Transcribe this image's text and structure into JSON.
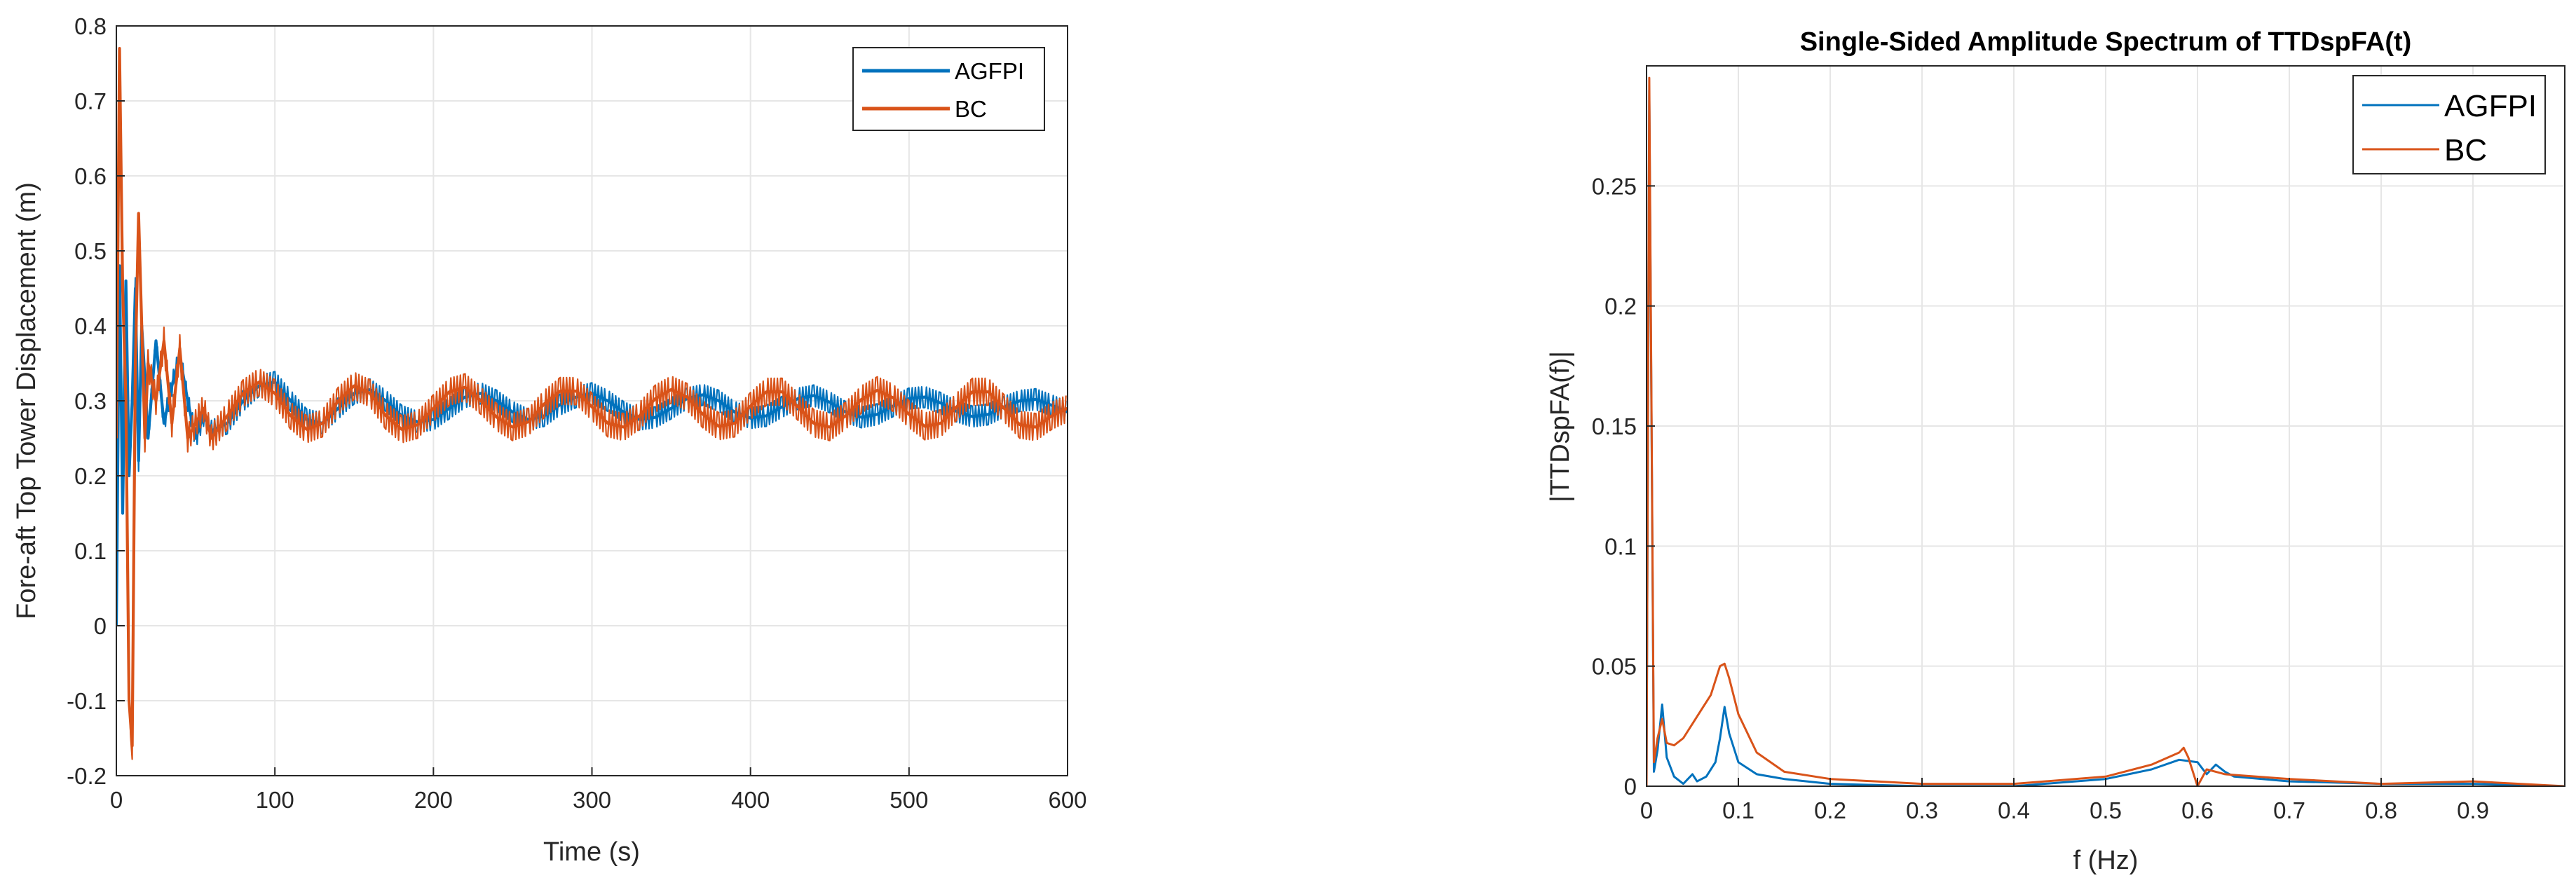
{
  "colors": {
    "agfpi": "#0072BD",
    "bc": "#D95319",
    "grid": "#e6e6e6",
    "axis": "#262626"
  },
  "chart_data": [
    {
      "type": "line",
      "title": "",
      "xlabel": "Time (s)",
      "ylabel": "Fore-aft Top Tower Displacement (m)",
      "xlim": [
        0,
        600
      ],
      "ylim": [
        -0.2,
        0.8
      ],
      "xticks": [
        0,
        100,
        200,
        300,
        400,
        500,
        600
      ],
      "xtick_labels": [
        "0",
        "100",
        "200",
        "300",
        "400",
        "500",
        "600"
      ],
      "yticks": [
        -0.2,
        -0.1,
        0,
        0.1,
        0.2,
        0.3,
        0.4,
        0.5,
        0.6,
        0.7,
        0.8
      ],
      "ytick_labels": [
        "-0.2",
        "-0.1",
        "0",
        "0.1",
        "0.2",
        "0.3",
        "0.4",
        "0.5",
        "0.6",
        "0.7",
        "0.8"
      ],
      "grid": true,
      "legend": {
        "position": "top-right",
        "entries": [
          "AGFPI",
          "BC"
        ]
      },
      "series": [
        {
          "name": "AGFPI",
          "color": "#0072BD",
          "x": [
            0,
            2,
            4,
            6,
            8,
            10,
            12,
            14,
            16,
            18,
            20,
            25,
            30,
            35,
            40,
            45,
            50,
            55,
            60,
            70,
            80,
            90,
            100,
            110,
            120,
            130,
            140,
            150,
            160,
            170,
            180,
            190,
            200,
            210,
            220,
            230,
            240,
            250,
            260,
            270,
            280,
            290,
            300,
            310,
            320,
            330,
            340,
            350,
            360,
            370,
            380,
            390,
            400,
            410,
            420,
            430,
            440,
            450,
            460,
            470,
            480,
            490,
            500,
            510,
            520,
            530,
            540,
            550,
            560,
            570,
            580,
            590,
            600
          ],
          "values": [
            0.0,
            0.48,
            0.15,
            0.46,
            0.2,
            0.3,
            0.45,
            0.22,
            0.4,
            0.33,
            0.25,
            0.38,
            0.27,
            0.32,
            0.36,
            0.3,
            0.25,
            0.28,
            0.26,
            0.27,
            0.3,
            0.32,
            0.325,
            0.3,
            0.275,
            0.27,
            0.29,
            0.31,
            0.315,
            0.3,
            0.28,
            0.272,
            0.275,
            0.29,
            0.305,
            0.31,
            0.3,
            0.285,
            0.275,
            0.28,
            0.295,
            0.305,
            0.31,
            0.3,
            0.285,
            0.275,
            0.278,
            0.29,
            0.303,
            0.308,
            0.3,
            0.285,
            0.277,
            0.28,
            0.292,
            0.303,
            0.307,
            0.298,
            0.285,
            0.278,
            0.282,
            0.293,
            0.303,
            0.305,
            0.297,
            0.286,
            0.279,
            0.282,
            0.292,
            0.3,
            0.302,
            0.294,
            0.285
          ],
          "band": 0.014
        },
        {
          "name": "BC",
          "color": "#D95319",
          "x": [
            0,
            2,
            4,
            6,
            8,
            10,
            12,
            14,
            16,
            18,
            20,
            25,
            30,
            35,
            40,
            45,
            50,
            55,
            60,
            70,
            80,
            90,
            100,
            110,
            120,
            130,
            140,
            150,
            160,
            170,
            180,
            190,
            200,
            210,
            220,
            230,
            240,
            250,
            260,
            270,
            280,
            290,
            300,
            310,
            320,
            330,
            340,
            350,
            360,
            370,
            380,
            390,
            400,
            410,
            420,
            430,
            440,
            450,
            460,
            470,
            480,
            490,
            500,
            510,
            520,
            530,
            540,
            550,
            560,
            570,
            580,
            590,
            600
          ],
          "values": [
            0.25,
            0.77,
            0.45,
            0.3,
            -0.1,
            -0.16,
            0.35,
            0.55,
            0.4,
            0.25,
            0.35,
            0.3,
            0.38,
            0.27,
            0.37,
            0.25,
            0.27,
            0.29,
            0.25,
            0.28,
            0.31,
            0.325,
            0.31,
            0.28,
            0.262,
            0.27,
            0.3,
            0.32,
            0.31,
            0.28,
            0.262,
            0.268,
            0.29,
            0.312,
            0.318,
            0.3,
            0.278,
            0.265,
            0.272,
            0.296,
            0.313,
            0.313,
            0.292,
            0.27,
            0.265,
            0.28,
            0.303,
            0.315,
            0.305,
            0.282,
            0.266,
            0.27,
            0.293,
            0.312,
            0.312,
            0.292,
            0.27,
            0.265,
            0.28,
            0.302,
            0.314,
            0.304,
            0.282,
            0.266,
            0.27,
            0.292,
            0.312,
            0.312,
            0.29,
            0.268,
            0.265,
            0.28,
            0.29
          ],
          "band": 0.018
        }
      ]
    },
    {
      "type": "line",
      "title": "Single-Sided Amplitude Spectrum of TTDspFA(t)",
      "xlabel": "f (Hz)",
      "ylabel": "|TTDspFA(f)|",
      "xlim": [
        0,
        1
      ],
      "ylim": [
        0,
        0.3
      ],
      "xticks": [
        0,
        0.1,
        0.2,
        0.3,
        0.4,
        0.5,
        0.6,
        0.7,
        0.8,
        0.9
      ],
      "xtick_labels": [
        "0",
        "0.1",
        "0.2",
        "0.3",
        "0.4",
        "0.5",
        "0.6",
        "0.7",
        "0.8",
        "0.9"
      ],
      "yticks": [
        0,
        0.05,
        0.1,
        0.15,
        0.2,
        0.25
      ],
      "ytick_labels": [
        "0",
        "0.05",
        "0.1",
        "0.15",
        "0.2",
        "0.25"
      ],
      "grid": true,
      "legend": {
        "position": "top-right",
        "entries": [
          "AGFPI",
          "BC"
        ]
      },
      "series": [
        {
          "name": "AGFPI",
          "color": "#0072BD",
          "x": [
            0,
            0.003,
            0.008,
            0.012,
            0.017,
            0.022,
            0.03,
            0.04,
            0.05,
            0.055,
            0.065,
            0.075,
            0.08,
            0.085,
            0.09,
            0.1,
            0.12,
            0.15,
            0.2,
            0.3,
            0.4,
            0.5,
            0.55,
            0.58,
            0.6,
            0.61,
            0.62,
            0.63,
            0.64,
            0.7,
            0.8,
            0.9,
            1.0
          ],
          "values": [
            0.0,
            0.29,
            0.006,
            0.015,
            0.034,
            0.012,
            0.004,
            0.001,
            0.005,
            0.002,
            0.004,
            0.01,
            0.02,
            0.033,
            0.022,
            0.01,
            0.005,
            0.003,
            0.001,
            0.0,
            0.0,
            0.003,
            0.007,
            0.011,
            0.01,
            0.005,
            0.009,
            0.006,
            0.004,
            0.002,
            0.001,
            0.001,
            0.0
          ],
          "band": 0
        },
        {
          "name": "BC",
          "color": "#D95319",
          "x": [
            0,
            0.003,
            0.008,
            0.012,
            0.017,
            0.022,
            0.03,
            0.04,
            0.05,
            0.06,
            0.07,
            0.08,
            0.085,
            0.09,
            0.1,
            0.12,
            0.15,
            0.2,
            0.3,
            0.4,
            0.5,
            0.55,
            0.58,
            0.585,
            0.59,
            0.6,
            0.61,
            0.62,
            0.63,
            0.7,
            0.8,
            0.9,
            1.0
          ],
          "values": [
            0.0,
            0.295,
            0.01,
            0.02,
            0.028,
            0.018,
            0.017,
            0.02,
            0.026,
            0.032,
            0.038,
            0.05,
            0.051,
            0.045,
            0.03,
            0.014,
            0.006,
            0.003,
            0.001,
            0.001,
            0.004,
            0.009,
            0.014,
            0.016,
            0.012,
            0.0,
            0.007,
            0.006,
            0.005,
            0.003,
            0.001,
            0.002,
            0.0
          ],
          "band": 0
        }
      ]
    }
  ]
}
